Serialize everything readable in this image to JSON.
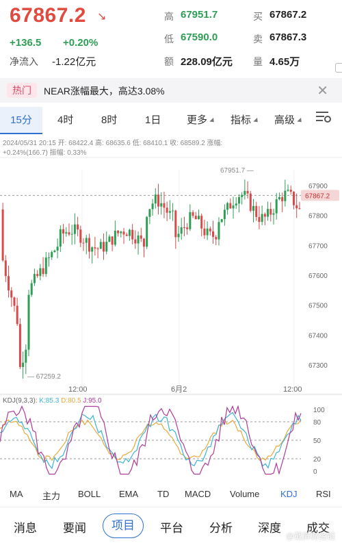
{
  "quote": {
    "price": "67867.2",
    "arrow": "↘",
    "change_abs": "+136.5",
    "change_pct": "+0.20%",
    "net_inflow_label": "净流入",
    "net_inflow_value": "-1.22亿元"
  },
  "stats": {
    "high_label": "高",
    "high_value": "67951.7",
    "low_label": "低",
    "low_value": "67590.0",
    "amount_label": "额",
    "amount_value": "228.09亿元",
    "bid_label": "买",
    "bid_value": "67867.2",
    "ask_label": "卖",
    "ask_value": "67867.3",
    "volume_label": "量",
    "volume_value": "4.65万"
  },
  "hot": {
    "tag": "热门",
    "text": "NEAR涨幅最大，高达3.08%"
  },
  "tabs": [
    "15分",
    "4时",
    "8时",
    "1日",
    "更多",
    "指标",
    "高级"
  ],
  "info": {
    "line1": "2024/05/31 20:15 开: 68422.4 高: 68635.6 低: 68410.1 收: 68589.2 涨幅:",
    "line2": "+0.24%(166.7) 振幅: 0.33%"
  },
  "chart_data": {
    "type": "candlestick",
    "y_ticks": [
      "67900",
      "67800",
      "67700",
      "67600",
      "67500",
      "67400",
      "67300"
    ],
    "x_ticks": [
      "12:00",
      "6月2",
      "12:00"
    ],
    "current_price_tag": "67867.2",
    "max_label": "67951.7",
    "min_label": "67259.2"
  },
  "kdj": {
    "title": "KDJ(9,3,3):",
    "k": "K:85.3",
    "d": "D:80.5",
    "j": "J:95.0",
    "y_ticks": [
      "100",
      "80",
      "50",
      "20",
      "0"
    ],
    "colors": {
      "k": "#3bb3d6",
      "d": "#e8a93b",
      "j": "#b03a9a"
    }
  },
  "indicators": [
    "MA",
    "主力",
    "BOLL",
    "EMA",
    "TD",
    "MACD",
    "Volume",
    "KDJ",
    "RSI"
  ],
  "nav": [
    "消息",
    "要闻",
    "项目",
    "平台",
    "分析",
    "深度",
    "成交"
  ],
  "watermark": "@截屏财经链"
}
